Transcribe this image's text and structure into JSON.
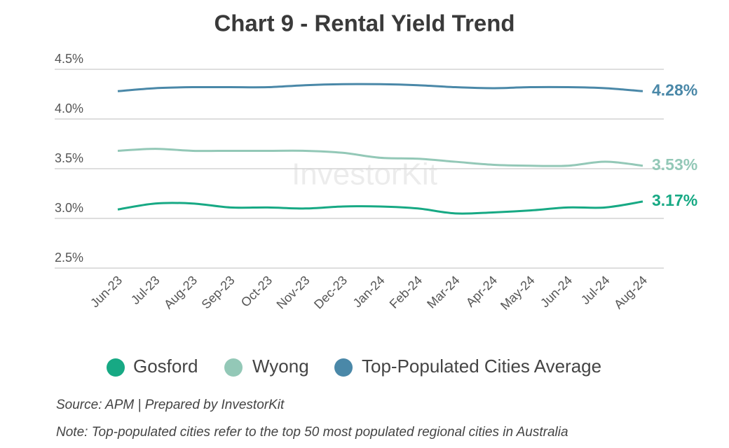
{
  "chart_data": {
    "type": "line",
    "title": "Chart 9 - Rental Yield Trend",
    "categories": [
      "Jun-23",
      "Jul-23",
      "Aug-23",
      "Sep-23",
      "Oct-23",
      "Nov-23",
      "Dec-23",
      "Jan-24",
      "Feb-24",
      "Mar-24",
      "Apr-24",
      "May-24",
      "Jun-24",
      "Jul-24",
      "Aug-24"
    ],
    "series": [
      {
        "name": "Gosford",
        "color": "#17a984",
        "values": [
          3.09,
          3.15,
          3.15,
          3.11,
          3.11,
          3.1,
          3.12,
          3.12,
          3.1,
          3.05,
          3.06,
          3.08,
          3.11,
          3.11,
          3.17
        ],
        "end_label": "3.17%"
      },
      {
        "name": "Wyong",
        "color": "#93c8b7",
        "values": [
          3.68,
          3.7,
          3.68,
          3.68,
          3.68,
          3.68,
          3.66,
          3.61,
          3.6,
          3.57,
          3.54,
          3.53,
          3.53,
          3.57,
          3.53
        ],
        "end_label": "3.53%"
      },
      {
        "name": "Top-Populated Cities Average",
        "color": "#4a88a8",
        "values": [
          4.28,
          4.31,
          4.32,
          4.32,
          4.32,
          4.34,
          4.35,
          4.35,
          4.34,
          4.32,
          4.31,
          4.32,
          4.32,
          4.31,
          4.28
        ],
        "end_label": "4.28%"
      }
    ],
    "ylim": [
      2.5,
      4.5
    ],
    "yticks": [
      {
        "value": 2.5,
        "label": "2.5%"
      },
      {
        "value": 3.0,
        "label": "3.0%"
      },
      {
        "value": 3.5,
        "label": "3.5%"
      },
      {
        "value": 4.0,
        "label": "4.0%"
      },
      {
        "value": 4.5,
        "label": "4.5%"
      }
    ],
    "grid": true,
    "legend": "bottom",
    "watermark": "InvestorKit",
    "source": "Source: APM | Prepared by InvestorKit",
    "note": "Note: Top-populated cities refer to the top 50 most populated regional cities in Australia"
  }
}
